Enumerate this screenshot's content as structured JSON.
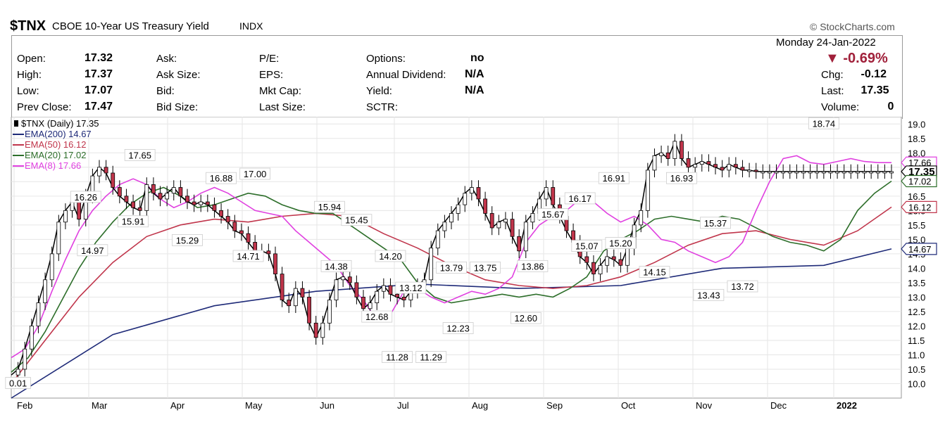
{
  "header": {
    "symbol": "$TNX",
    "name": "CBOE 10-Year US Treasury Yield",
    "exchange": "INDX",
    "watermark": "© StockCharts.com",
    "date": "Monday  24-Jan-2022",
    "pct_change": "▼ -0.69%",
    "colors": {
      "down": "#a0203a"
    }
  },
  "quote": {
    "col1": [
      {
        "label": "Open:",
        "value": "17.32"
      },
      {
        "label": "High:",
        "value": "17.37"
      },
      {
        "label": "Low:",
        "value": "17.07"
      },
      {
        "label": "Prev Close:",
        "value": "17.47"
      }
    ],
    "col2": [
      {
        "label": "Ask:"
      },
      {
        "label": "Ask Size:"
      },
      {
        "label": "Bid:"
      },
      {
        "label": "Bid Size:"
      }
    ],
    "col3": [
      {
        "label": "P/E:"
      },
      {
        "label": "EPS:"
      },
      {
        "label": "Mkt Cap:"
      },
      {
        "label": "Last Size:"
      }
    ],
    "col4": [
      {
        "label": "Options:",
        "value": "no"
      },
      {
        "label": "Annual Dividend:",
        "value": "N/A"
      },
      {
        "label": "Yield:",
        "value": "N/A"
      },
      {
        "label": "SCTR:"
      }
    ],
    "right": [
      {
        "label": "Chg:",
        "value": "-0.12"
      },
      {
        "label": "Last:",
        "value": "17.35"
      },
      {
        "label": "Volume:",
        "value": "0"
      }
    ]
  },
  "chart_data": {
    "type": "line",
    "title": "$TNX (Daily) 17.35",
    "ylim": [
      9.5,
      19.25
    ],
    "y_ticks": [
      "10.0",
      "10.5",
      "11.0",
      "11.5",
      "12.0",
      "12.5",
      "13.0",
      "13.5",
      "14.0",
      "14.5",
      "15.0",
      "15.5",
      "16.0",
      "16.5",
      "17.0",
      "17.5",
      "18.0",
      "18.5",
      "19.0"
    ],
    "x_months": [
      "Feb",
      "Mar",
      "Apr",
      "May",
      "Jun",
      "Jul",
      "Aug",
      "Sep",
      "Oct",
      "Nov",
      "Dec",
      "2022"
    ],
    "series": [
      {
        "name": "EMA(200)",
        "legend": "EMA(200) 14.67",
        "last": "14.67",
        "color": "#1e2a78",
        "x": [
          0,
          30,
          60,
          90,
          120,
          150,
          180,
          210,
          240,
          260
        ],
        "values": [
          9.5,
          11.7,
          12.7,
          13.2,
          13.45,
          13.3,
          13.4,
          14.0,
          14.1,
          14.67
        ]
      },
      {
        "name": "EMA(50)",
        "legend": "EMA(50) 16.12",
        "last": "16.12",
        "color": "#c0354b",
        "x": [
          0,
          10,
          20,
          30,
          40,
          50,
          60,
          70,
          80,
          90,
          100,
          110,
          120,
          130,
          140,
          150,
          160,
          170,
          180,
          190,
          200,
          210,
          220,
          230,
          240,
          250,
          260
        ],
        "values": [
          10.0,
          11.5,
          13.0,
          14.2,
          15.1,
          15.5,
          15.7,
          15.6,
          15.8,
          15.9,
          15.8,
          15.2,
          14.7,
          14.1,
          13.6,
          13.4,
          13.3,
          13.4,
          13.7,
          14.2,
          14.8,
          15.2,
          15.3,
          15.0,
          14.8,
          15.3,
          16.12
        ]
      },
      {
        "name": "EMA(20)",
        "legend": "EMA(20) 17.02",
        "last": "17.02",
        "color": "#2d6e2a",
        "x": [
          0,
          5,
          10,
          15,
          20,
          25,
          30,
          35,
          40,
          45,
          50,
          55,
          60,
          65,
          70,
          75,
          80,
          85,
          90,
          95,
          100,
          105,
          110,
          115,
          120,
          125,
          130,
          135,
          140,
          145,
          150,
          155,
          160,
          165,
          170,
          175,
          180,
          185,
          190,
          195,
          200,
          205,
          210,
          215,
          220,
          225,
          230,
          235,
          240,
          245,
          250,
          255,
          260
        ],
        "values": [
          10.4,
          10.9,
          11.8,
          12.9,
          14.0,
          14.9,
          15.6,
          16.2,
          16.6,
          16.8,
          16.5,
          16.1,
          16.2,
          16.4,
          16.6,
          16.5,
          16.2,
          16.0,
          15.9,
          15.9,
          15.5,
          15.1,
          14.7,
          14.3,
          13.5,
          13.0,
          12.8,
          12.9,
          13.0,
          13.1,
          13.0,
          13.1,
          13.0,
          13.3,
          13.7,
          14.6,
          15.0,
          15.3,
          15.7,
          15.8,
          15.7,
          15.6,
          15.8,
          15.7,
          15.4,
          15.1,
          14.9,
          14.8,
          14.6,
          15.0,
          16.0,
          16.6,
          17.02
        ]
      },
      {
        "name": "EMA(8)",
        "legend": "EMA(8) 17.66",
        "last": "17.66",
        "color": "#e040e0",
        "x": [
          0,
          4,
          8,
          12,
          16,
          20,
          24,
          28,
          32,
          36,
          40,
          44,
          48,
          52,
          56,
          60,
          64,
          68,
          72,
          76,
          80,
          84,
          88,
          92,
          96,
          100,
          104,
          108,
          112,
          116,
          120,
          124,
          128,
          132,
          136,
          140,
          144,
          148,
          152,
          156,
          160,
          164,
          168,
          172,
          176,
          180,
          184,
          188,
          192,
          196,
          200,
          204,
          208,
          212,
          216,
          220,
          224,
          228,
          232,
          236,
          240,
          244,
          248,
          252,
          256,
          260
        ],
        "values": [
          10.9,
          11.2,
          12.0,
          13.2,
          14.3,
          15.3,
          16.0,
          16.5,
          16.9,
          17.1,
          16.9,
          16.4,
          16.1,
          16.3,
          16.6,
          16.8,
          16.6,
          16.3,
          16.0,
          15.9,
          15.8,
          15.3,
          14.9,
          14.5,
          14.1,
          13.4,
          12.9,
          12.2,
          12.4,
          13.2,
          13.3,
          13.0,
          12.8,
          13.0,
          13.2,
          13.1,
          13.3,
          13.7,
          14.9,
          15.5,
          15.8,
          16.0,
          16.4,
          16.3,
          15.9,
          15.6,
          15.8,
          15.5,
          15.0,
          14.9,
          14.6,
          14.4,
          14.2,
          14.4,
          14.9,
          16.0,
          17.0,
          17.8,
          17.9,
          17.66,
          17.6,
          17.7,
          17.8,
          17.7,
          17.66,
          17.66
        ]
      },
      {
        "name": "$TNX",
        "legend": "$TNX (Daily) 17.35",
        "last": "17.35",
        "color": "#000000",
        "x": [
          0,
          2,
          4,
          6,
          8,
          10,
          12,
          14,
          16,
          18,
          20,
          22,
          24,
          26,
          28,
          30,
          32,
          34,
          36,
          38,
          40,
          42,
          44,
          46,
          48,
          50,
          52,
          54,
          56,
          58,
          60,
          62,
          64,
          66,
          68,
          70,
          72,
          74,
          76,
          78,
          80,
          82,
          84,
          86,
          88,
          90,
          92,
          94,
          96,
          98,
          100,
          102,
          104,
          106,
          108,
          110,
          112,
          114,
          116,
          118,
          120,
          122,
          124,
          126,
          128,
          130,
          132,
          134,
          136,
          138,
          140,
          142,
          144,
          146,
          148,
          150,
          152,
          154,
          156,
          158,
          160,
          162,
          164,
          166,
          168,
          170,
          172,
          174,
          176,
          178,
          180,
          182,
          184,
          186,
          188,
          190,
          192,
          194,
          196,
          198,
          200,
          202,
          204,
          206,
          208,
          210,
          212,
          214,
          216,
          218,
          220,
          222,
          224,
          226,
          228,
          230,
          232,
          234,
          236,
          238,
          240,
          242,
          244,
          246,
          248,
          250,
          252,
          254,
          256,
          258,
          260
        ],
        "values": [
          10.3,
          10.5,
          11.2,
          12.0,
          12.8,
          13.6,
          14.5,
          15.6,
          16.0,
          16.3,
          15.7,
          16.5,
          17.2,
          17.5,
          17.3,
          16.8,
          16.5,
          16.3,
          16.1,
          16.0,
          16.9,
          16.6,
          16.4,
          16.6,
          16.8,
          16.5,
          16.3,
          16.2,
          16.3,
          16.2,
          16.0,
          15.8,
          15.6,
          15.3,
          15.2,
          14.9,
          14.6,
          14.6,
          14.5,
          13.8,
          12.9,
          12.7,
          13.3,
          13.0,
          12.1,
          11.6,
          12.1,
          12.9,
          13.6,
          13.7,
          13.5,
          13.0,
          12.6,
          12.8,
          13.2,
          13.4,
          13.1,
          13.0,
          12.9,
          13.2,
          13.4,
          13.6,
          14.7,
          15.3,
          15.6,
          15.9,
          16.2,
          16.6,
          16.8,
          16.4,
          15.9,
          15.4,
          15.6,
          15.7,
          15.1,
          14.6,
          15.6,
          15.9,
          16.4,
          16.8,
          16.2,
          15.8,
          15.3,
          14.9,
          14.4,
          14.2,
          13.8,
          14.1,
          14.4,
          14.3,
          14.1,
          14.7,
          15.5,
          16.0,
          17.4,
          17.9,
          18.0,
          17.8,
          18.4,
          17.8,
          17.5,
          17.6,
          17.7,
          17.6,
          17.5,
          17.4,
          17.6,
          17.5,
          17.4,
          17.4,
          17.35,
          17.35,
          17.35,
          17.35,
          17.35,
          17.35,
          17.35,
          17.35,
          17.35,
          17.35,
          17.35,
          17.35,
          17.35,
          17.35,
          17.35,
          17.35,
          17.35,
          17.35,
          17.35,
          17.35,
          17.35
        ]
      }
    ],
    "annotations": [
      {
        "label": "0.01",
        "x": 2,
        "y": 10.0
      },
      {
        "label": "16.26",
        "x": 22,
        "y": 16.45
      },
      {
        "label": "14.97",
        "x": 24,
        "y": 14.6
      },
      {
        "label": "17.65",
        "x": 38,
        "y": 17.9
      },
      {
        "label": "15.91",
        "x": 36,
        "y": 15.6
      },
      {
        "label": "15.29",
        "x": 52,
        "y": 14.95
      },
      {
        "label": "16.88",
        "x": 62,
        "y": 17.1
      },
      {
        "label": "17.00",
        "x": 72,
        "y": 17.25
      },
      {
        "label": "14.71",
        "x": 70,
        "y": 14.4
      },
      {
        "label": "15.94",
        "x": 94,
        "y": 16.1
      },
      {
        "label": "15.45",
        "x": 102,
        "y": 15.65
      },
      {
        "label": "14.38",
        "x": 96,
        "y": 14.05
      },
      {
        "label": "14.20",
        "x": 112,
        "y": 14.4
      },
      {
        "label": "13.12",
        "x": 118,
        "y": 13.3
      },
      {
        "label": "12.68",
        "x": 108,
        "y": 12.3
      },
      {
        "label": "11.28",
        "x": 114,
        "y": 10.9
      },
      {
        "label": "11.29",
        "x": 124,
        "y": 10.9
      },
      {
        "label": "13.79",
        "x": 130,
        "y": 14.0
      },
      {
        "label": "13.75",
        "x": 140,
        "y": 14.0
      },
      {
        "label": "12.23",
        "x": 132,
        "y": 11.9
      },
      {
        "label": "13.86",
        "x": 154,
        "y": 14.05
      },
      {
        "label": "12.60",
        "x": 152,
        "y": 12.25
      },
      {
        "label": "15.67",
        "x": 160,
        "y": 15.85
      },
      {
        "label": "16.17",
        "x": 168,
        "y": 16.4
      },
      {
        "label": "15.07",
        "x": 170,
        "y": 14.75
      },
      {
        "label": "16.91",
        "x": 178,
        "y": 17.1
      },
      {
        "label": "15.20",
        "x": 180,
        "y": 14.85
      },
      {
        "label": "14.15",
        "x": 190,
        "y": 13.85
      },
      {
        "label": "16.93",
        "x": 198,
        "y": 17.1
      },
      {
        "label": "15.37",
        "x": 208,
        "y": 15.55
      },
      {
        "label": "13.43",
        "x": 206,
        "y": 13.05
      },
      {
        "label": "13.72",
        "x": 216,
        "y": 13.35
      },
      {
        "label": "18.74",
        "x": 240,
        "y": 19.0
      }
    ]
  }
}
